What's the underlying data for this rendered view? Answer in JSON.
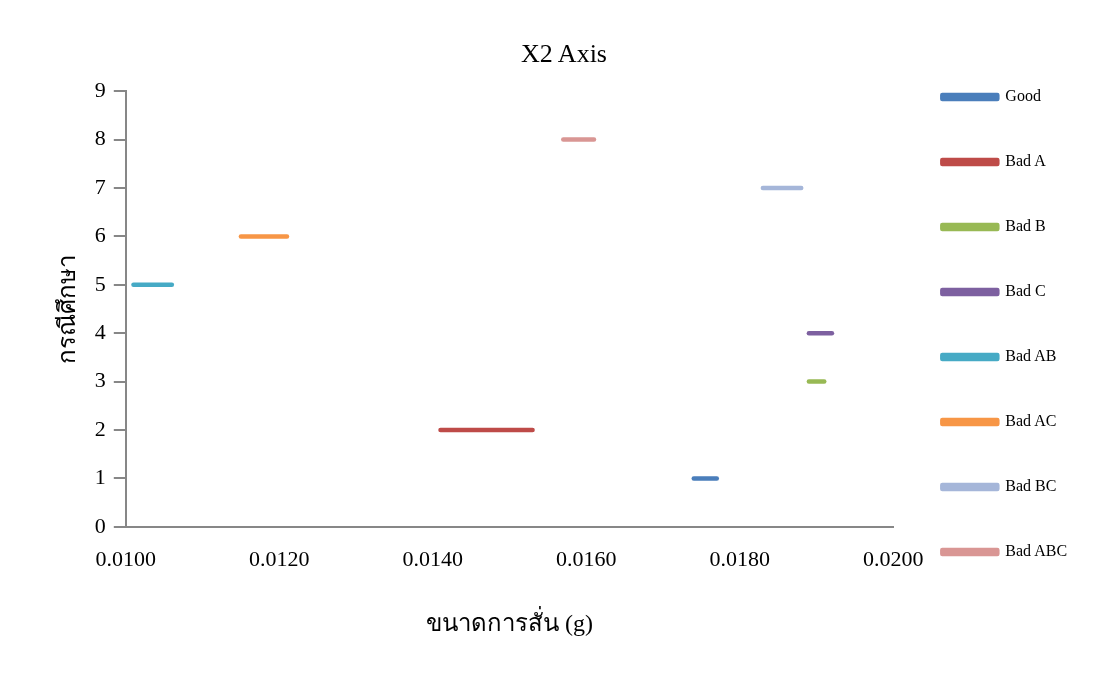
{
  "chart_data": {
    "type": "line",
    "title": "X2 Axis",
    "xlabel": "ขนาดการสั่น (g)",
    "ylabel": "กรณีศึกษา",
    "xlim": [
      0.01,
      0.02
    ],
    "xticks": [
      {
        "value": 0.01,
        "label": "0.0100"
      },
      {
        "value": 0.012,
        "label": "0.0120"
      },
      {
        "value": 0.014,
        "label": "0.0140"
      },
      {
        "value": 0.016,
        "label": "0.0160"
      },
      {
        "value": 0.018,
        "label": "0.0180"
      },
      {
        "value": 0.02,
        "label": "0.0200"
      }
    ],
    "ylim": [
      0,
      9
    ],
    "yticks": [
      0,
      1,
      2,
      3,
      4,
      5,
      6,
      7,
      8,
      9
    ],
    "grid": false,
    "legend": "right",
    "marker": "none",
    "line_style": "solid",
    "series": [
      {
        "name": "Good",
        "color": "#4a7ebb",
        "x": [
          0.0174,
          0.0177
        ],
        "values": [
          1,
          1
        ]
      },
      {
        "name": "Bad A",
        "color": "#be4b48",
        "x": [
          0.0141,
          0.0153
        ],
        "values": [
          2,
          2
        ]
      },
      {
        "name": "Bad B",
        "color": "#98b954",
        "x": [
          0.0189,
          0.0191
        ],
        "values": [
          3,
          3
        ]
      },
      {
        "name": "Bad C",
        "color": "#7d60a0",
        "x": [
          0.0189,
          0.0192
        ],
        "values": [
          4,
          4
        ]
      },
      {
        "name": "Bad AB",
        "color": "#46aac5",
        "x": [
          0.0101,
          0.0106
        ],
        "values": [
          5,
          5
        ]
      },
      {
        "name": "Bad AC",
        "color": "#f79646",
        "x": [
          0.0115,
          0.0121
        ],
        "values": [
          6,
          6
        ]
      },
      {
        "name": "Bad BC",
        "color": "#a5b6d9",
        "x": [
          0.0183,
          0.0188
        ],
        "values": [
          7,
          7
        ]
      },
      {
        "name": "Bad ABC",
        "color": "#d99694",
        "x": [
          0.0157,
          0.0161
        ],
        "values": [
          8,
          8
        ]
      }
    ]
  }
}
